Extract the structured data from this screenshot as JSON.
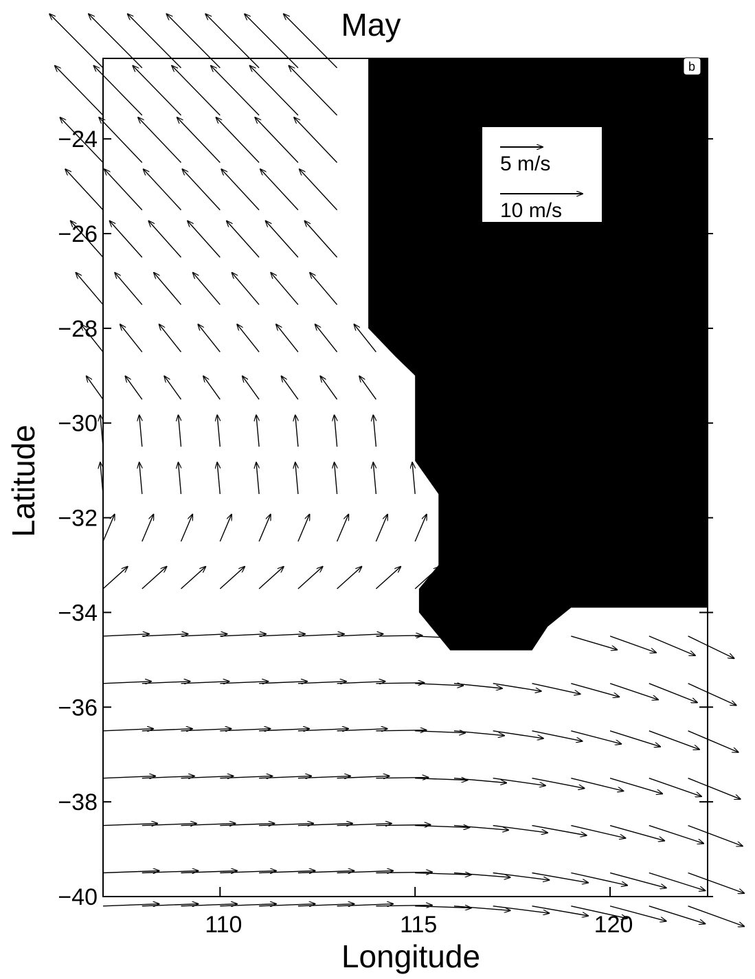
{
  "chart_data": {
    "type": "vector_field",
    "title": "May",
    "panel_label": "b",
    "xlabel": "Longitude",
    "ylabel": "Latitude",
    "xlim": [
      107,
      122.5
    ],
    "ylim": [
      -40,
      -22.3
    ],
    "x_ticks": [
      110,
      115,
      120
    ],
    "y_ticks": [
      -24,
      -26,
      -28,
      -30,
      -32,
      -34,
      -36,
      -38,
      -40
    ],
    "x_tick_labels": [
      "110",
      "115",
      "120"
    ],
    "y_tick_labels": [
      "−24",
      "−26",
      "−28",
      "−30",
      "−32",
      "−34",
      "−36",
      "−38",
      "−40"
    ],
    "grid": false,
    "legend": {
      "placement": "top-right",
      "entries": [
        {
          "label": "5 m/s",
          "speed": 5
        },
        {
          "label": "10 m/s",
          "speed": 10
        }
      ]
    },
    "land_color": "#000000",
    "water_color": "#ffffff",
    "land_boundary": [
      [
        113.8,
        -22.2
      ],
      [
        123.0,
        -22.2
      ],
      [
        123.0,
        -33.9
      ],
      [
        119.0,
        -33.9
      ],
      [
        118.4,
        -34.3
      ],
      [
        118.0,
        -34.8
      ],
      [
        115.9,
        -34.8
      ],
      [
        115.1,
        -34.0
      ],
      [
        115.1,
        -33.5
      ],
      [
        115.6,
        -33.0
      ],
      [
        115.6,
        -31.5
      ],
      [
        115.0,
        -30.8
      ],
      [
        115.0,
        -29.0
      ],
      [
        114.5,
        -28.6
      ],
      [
        113.8,
        -28.0
      ]
    ],
    "vector_grid": {
      "lon": [
        107,
        108,
        109,
        110,
        111,
        112,
        113,
        114,
        115,
        116,
        117,
        118,
        119,
        120,
        121,
        122
      ],
      "lat": [
        -22.5,
        -23.5,
        -24.5,
        -25.5,
        -26.5,
        -27.5,
        -28.5,
        -29.5,
        -30.5,
        -31.5,
        -32.5,
        -33.5,
        -34.5,
        -35.5,
        -36.5,
        -37.5,
        -38.5,
        -39.5,
        -40.2
      ]
    }
  }
}
